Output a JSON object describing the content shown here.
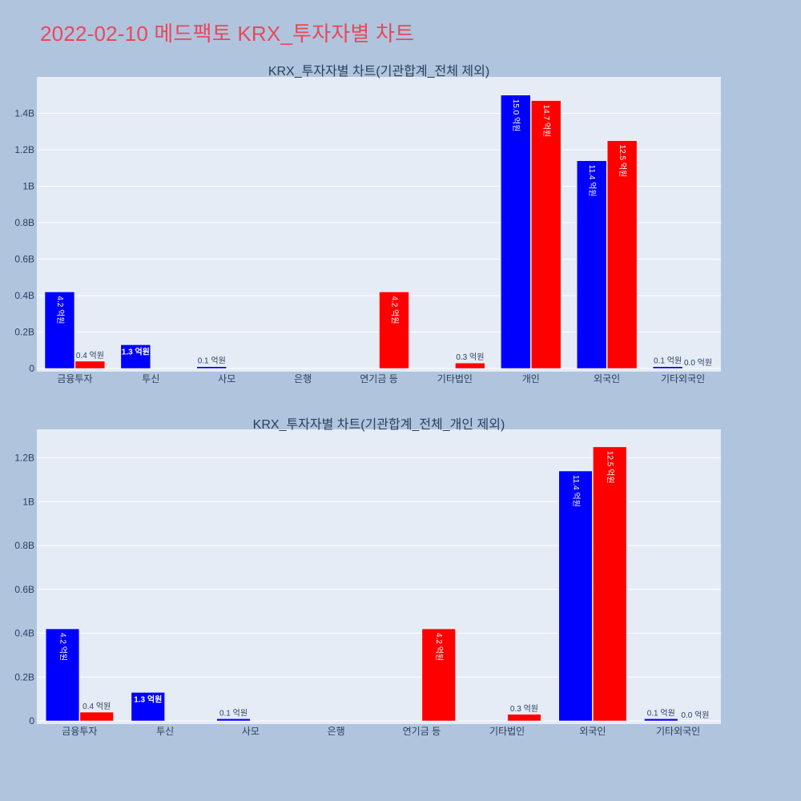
{
  "title": "2022-02-10 메드팩토 KRX_투자자별 차트",
  "colors": {
    "page_bg": "#b0c4de",
    "plot_bg": "#e5ecf6",
    "grid": "#ffffff",
    "title": "#e8495a",
    "buy": "#0000ff",
    "sell": "#ff0000",
    "text": "#2a3f5f"
  },
  "chart_data": [
    {
      "type": "bar",
      "title": "KRX_투자자별 차트(기관합계_전체 제외)",
      "categories": [
        "금융투자",
        "투신",
        "사모",
        "은행",
        "연기금 등",
        "기타법인",
        "개인",
        "외국인",
        "기타외국인"
      ],
      "series": [
        {
          "color": "#0000ff",
          "values": [
            420000000,
            130000000,
            10000000,
            0,
            0,
            0,
            1500000000,
            1140000000,
            10000000
          ],
          "labels": [
            "4.2 억원",
            "1.3 억원",
            "0.1 억원",
            "",
            "",
            "",
            "15.0 억원",
            "11.4 억원",
            "0.1 억원"
          ]
        },
        {
          "color": "#ff0000",
          "values": [
            40000000,
            0,
            0,
            0,
            420000000,
            30000000,
            1470000000,
            1250000000,
            0
          ],
          "labels": [
            "0.4 억원",
            "",
            "",
            "",
            "4.2 억원",
            "0.3 억원",
            "14.7 억원",
            "12.5 억원",
            "0.0 억원"
          ]
        }
      ],
      "ylim": [
        0,
        1600000000
      ],
      "yticks": [
        0,
        200000000,
        400000000,
        600000000,
        800000000,
        1000000000,
        1200000000,
        1400000000
      ],
      "ytick_labels": [
        "0",
        "0.2B",
        "0.4B",
        "0.6B",
        "0.8B",
        "1B",
        "1.2B",
        "1.4B"
      ],
      "grid": true
    },
    {
      "type": "bar",
      "title": "KRX_투자자별 차트(기관합계_전체_개인 제외)",
      "categories": [
        "금융투자",
        "투신",
        "사모",
        "은행",
        "연기금 등",
        "기타법인",
        "외국인",
        "기타외국인"
      ],
      "series": [
        {
          "color": "#0000ff",
          "values": [
            420000000,
            130000000,
            10000000,
            0,
            0,
            0,
            1140000000,
            10000000
          ],
          "labels": [
            "4.2 억원",
            "1.3 억원",
            "0.1 억원",
            "",
            "",
            "",
            "11.4 억원",
            "0.1 억원"
          ]
        },
        {
          "color": "#ff0000",
          "values": [
            40000000,
            0,
            0,
            0,
            420000000,
            30000000,
            1250000000,
            0
          ],
          "labels": [
            "0.4 억원",
            "",
            "",
            "",
            "4.2 억원",
            "0.3 억원",
            "12.5 억원",
            "0.0 억원"
          ]
        }
      ],
      "ylim": [
        0,
        1330000000
      ],
      "yticks": [
        0,
        200000000,
        400000000,
        600000000,
        800000000,
        1000000000,
        1200000000
      ],
      "ytick_labels": [
        "0",
        "0.2B",
        "0.4B",
        "0.6B",
        "0.8B",
        "1B",
        "1.2B"
      ],
      "grid": true
    }
  ]
}
